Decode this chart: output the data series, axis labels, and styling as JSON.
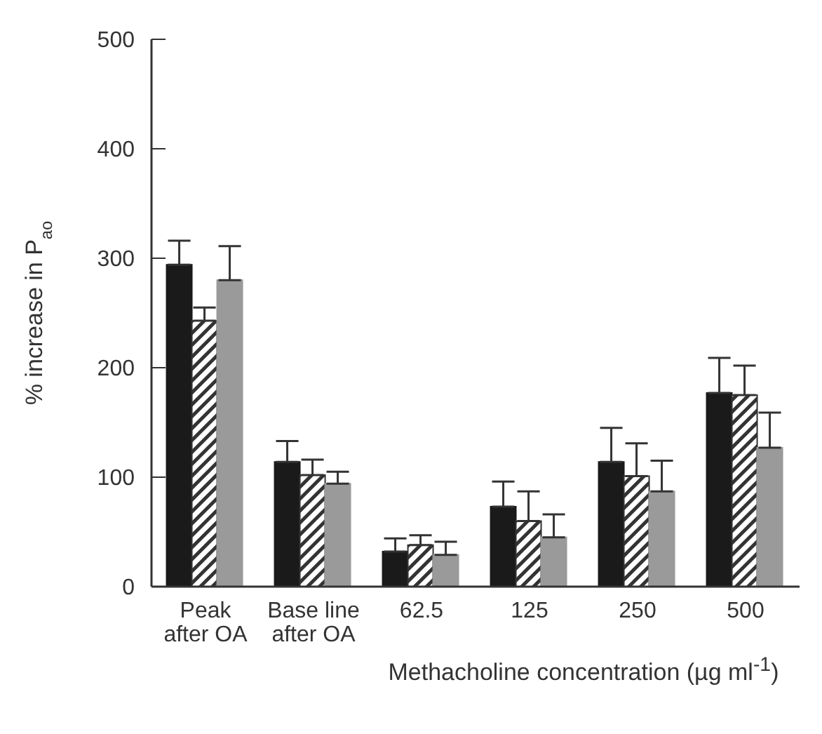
{
  "chart_data": {
    "type": "bar",
    "ylabel": "% increase in P$_{ao}$",
    "xlabel": "Methacholine concentration (µg ml$^{-1}$)",
    "categories": [
      "Peak after OA",
      "Base line after OA",
      "62.5",
      "125",
      "250",
      "500"
    ],
    "series": [
      {
        "color": "#1a1a1a",
        "values": [
          294,
          114,
          32,
          73,
          114,
          177
        ],
        "errors": [
          [
            294,
            316
          ],
          [
            114,
            133
          ],
          [
            32,
            44
          ],
          [
            73,
            96
          ],
          [
            114,
            145
          ],
          [
            177,
            209
          ]
        ]
      },
      {
        "type": "bar",
        "color": "#333333",
        "values": [
          243,
          102,
          38,
          60,
          101,
          175
        ],
        "errors": [
          [
            243,
            255
          ],
          [
            102,
            116
          ],
          [
            38,
            47
          ],
          [
            60,
            87
          ],
          [
            101,
            131
          ],
          [
            175,
            202
          ]
        ]
      },
      {
        "color": "#9a9a9a",
        "values": [
          280,
          94,
          29,
          45,
          87,
          127
        ],
        "errors": [
          [
            280,
            311
          ],
          [
            94,
            105
          ],
          [
            29,
            41
          ],
          [
            45,
            66
          ],
          [
            87,
            115
          ],
          [
            127,
            159
          ]
        ]
      }
    ],
    "ylim": [
      0,
      500
    ],
    "yticks": [
      0,
      100,
      200,
      300,
      400,
      500
    ],
    "grid": false,
    "legend": false
  }
}
